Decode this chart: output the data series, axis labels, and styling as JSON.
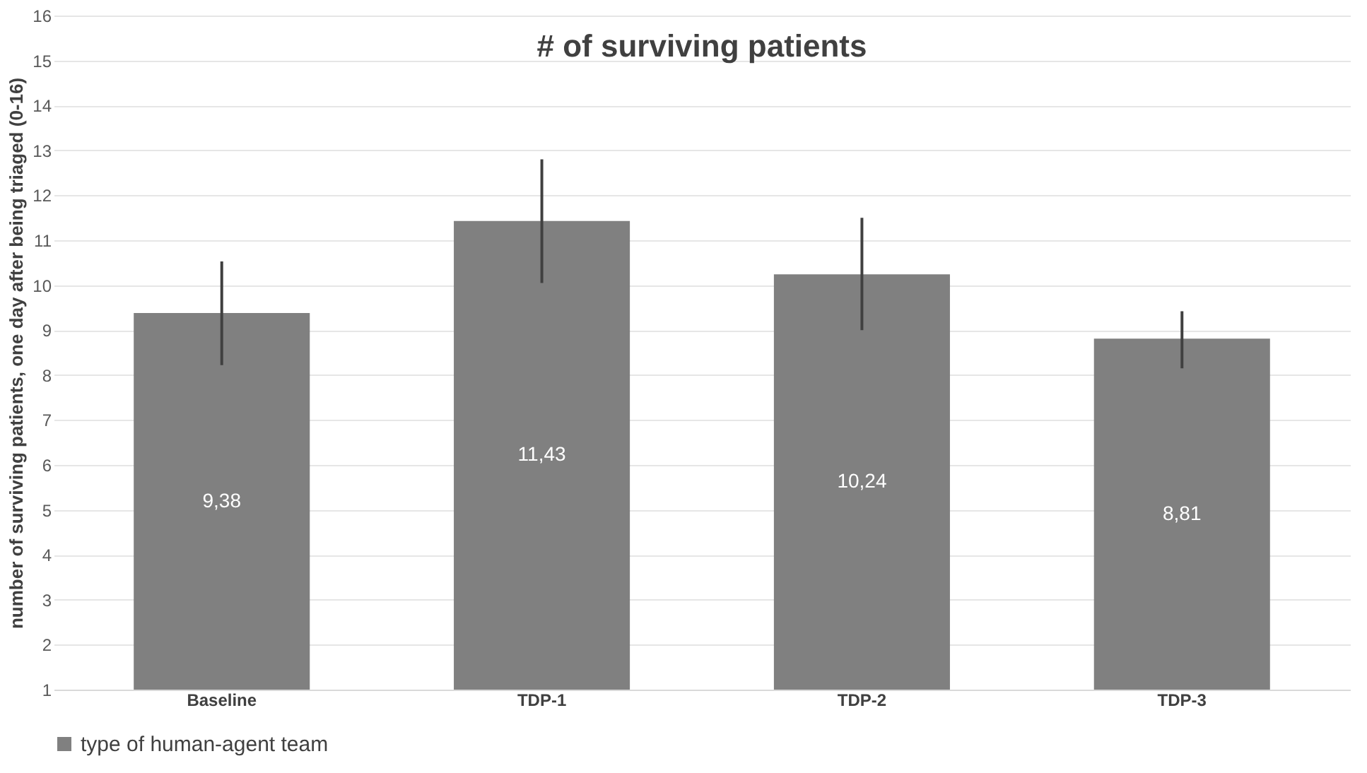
{
  "chart_data": {
    "type": "bar",
    "title": "# of surviving patients",
    "ylabel": "number of surviving patients, one day after being triaged (0-16)",
    "categories": [
      "Baseline",
      "TDP-1",
      "TDP-2",
      "TDP-3"
    ],
    "series": [
      {
        "name": "type of human-agent team",
        "color": "#808080",
        "values": [
          9.38,
          11.43,
          10.24,
          8.81
        ],
        "value_labels": [
          "9,38",
          "11,43",
          "10,24",
          "8,81"
        ],
        "errors": [
          [
            8.22,
            10.53
          ],
          [
            10.05,
            12.8
          ],
          [
            9.0,
            11.5
          ],
          [
            8.15,
            9.42
          ]
        ]
      }
    ],
    "ylim": [
      1,
      16
    ],
    "yticks": [
      1,
      2,
      3,
      4,
      5,
      6,
      7,
      8,
      9,
      10,
      11,
      12,
      13,
      14,
      15,
      16
    ],
    "grid": "y",
    "legend": "bottom"
  }
}
